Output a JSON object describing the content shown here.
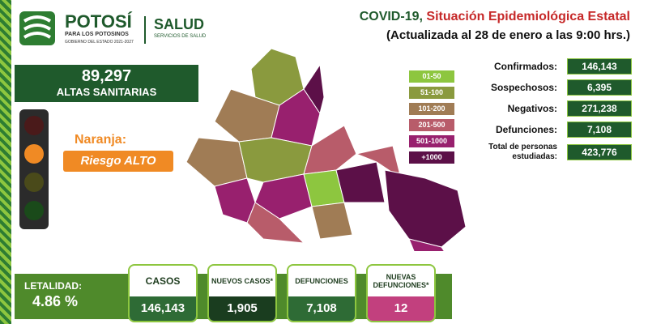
{
  "logo": {
    "name": "POTOSÍ",
    "tagline": "PARA LOS POTOSINOS",
    "government": "GOBIERNO DEL ESTADO 2021-2027",
    "agency": "SALUD",
    "agency_sub": "SERVICIOS DE SALUD"
  },
  "header": {
    "title_lead": "COVID-19,",
    "title_highlight": "Situación Epidemiológica Estatal",
    "subtitle": "(Actualizada al 28 de enero a las 9:00 hrs.)"
  },
  "discharges": {
    "value": "89,297",
    "label": "ALTAS SANITARIAS"
  },
  "risk": {
    "color_label": "Naranja:",
    "level": "Riesgo ALTO"
  },
  "legend": [
    {
      "label": "01-50",
      "color": "#8dc63f"
    },
    {
      "label": "51-100",
      "color": "#8a9a3e"
    },
    {
      "label": "101-200",
      "color": "#a07c55"
    },
    {
      "label": "201-500",
      "color": "#b85c6a"
    },
    {
      "label": "501-1000",
      "color": "#98206e"
    },
    {
      "label": "+1000",
      "color": "#5c1048"
    }
  ],
  "stats": [
    {
      "label": "Confirmados:",
      "value": "146,143"
    },
    {
      "label": "Sospechosos:",
      "value": "6,395"
    },
    {
      "label": "Negativos:",
      "value": "271,238"
    },
    {
      "label": "Defunciones:",
      "value": "7,108"
    },
    {
      "label": "Total de personas estudiadas:",
      "value": "423,776"
    }
  ],
  "lethality": {
    "label": "LETALIDAD:",
    "value": "4.86 %"
  },
  "cards": [
    {
      "label": "CASOS",
      "value": "146,143"
    },
    {
      "label": "NUEVOS CASOS*",
      "value": "1,905"
    },
    {
      "label": "DEFUNCIONES",
      "value": "7,108"
    },
    {
      "label": "NUEVAS DEFUNCIONES*",
      "value": "12"
    }
  ]
}
